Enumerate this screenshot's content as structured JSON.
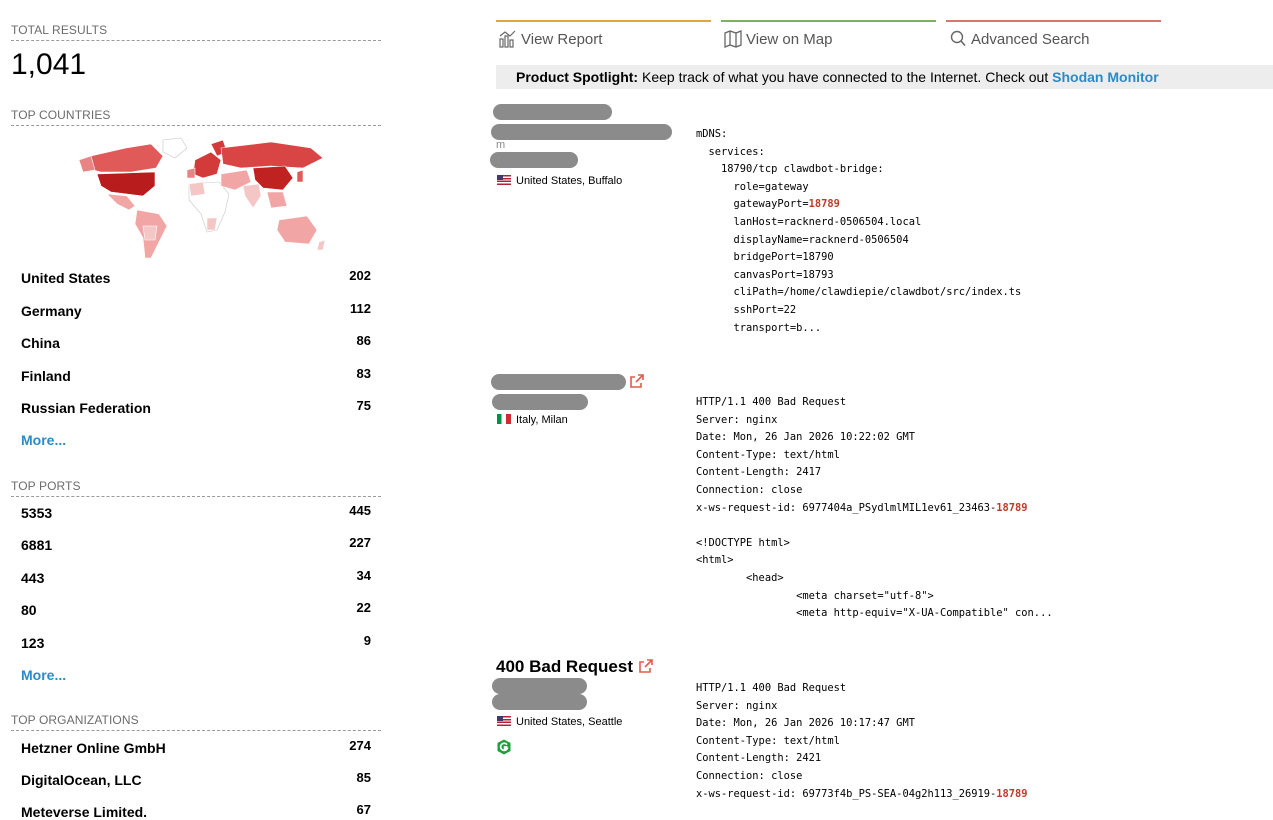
{
  "summary": {
    "total_results_label": "TOTAL RESULTS",
    "total_results": "1,041"
  },
  "top_countries": {
    "title": "TOP COUNTRIES",
    "items": [
      {
        "name": "United States",
        "count": "202"
      },
      {
        "name": "Germany",
        "count": "112"
      },
      {
        "name": "China",
        "count": "86"
      },
      {
        "name": "Finland",
        "count": "83"
      },
      {
        "name": "Russian Federation",
        "count": "75"
      }
    ],
    "more_label": "More..."
  },
  "top_ports": {
    "title": "TOP PORTS",
    "items": [
      {
        "name": "5353",
        "count": "445"
      },
      {
        "name": "6881",
        "count": "227"
      },
      {
        "name": "443",
        "count": "34"
      },
      {
        "name": "80",
        "count": "22"
      },
      {
        "name": "123",
        "count": "9"
      }
    ],
    "more_label": "More..."
  },
  "top_organizations": {
    "title": "TOP ORGANIZATIONS",
    "items": [
      {
        "name": "Hetzner Online GmbH",
        "count": "274"
      },
      {
        "name": "DigitalOcean, LLC",
        "count": "85"
      },
      {
        "name": "Meteverse Limited.",
        "count": "67"
      }
    ]
  },
  "nav": {
    "view_report": "View Report",
    "view_on_map": "View on Map",
    "advanced_search": "Advanced Search"
  },
  "spotlight": {
    "label": "Product Spotlight:",
    "text": " Keep track of what you have connected to the Internet. Check out ",
    "link": "Shodan Monitor"
  },
  "results": [
    {
      "small_text": "m",
      "location": "United States, Buffalo",
      "banner_lines": [
        "mDNS:",
        "  services:",
        "    18790/tcp clawdbot-bridge:",
        "      role=gateway",
        "      gatewayPort="
      ],
      "highlight": "18789",
      "banner_rest": "      lanHost=racknerd-0506504.local\n      displayName=racknerd-0506504\n      bridgePort=18790\n      canvasPort=18793\n      cliPath=/home/clawdiepie/clawdbot/src/index.ts\n      sshPort=22\n      transport=b..."
    },
    {
      "location": "Italy, Milan",
      "banner_head": "HTTP/1.1 400 Bad Request\nServer: nginx\nDate: Mon, 26 Jan 2026 10:22:02 GMT\nContent-Type: text/html\nContent-Length: 2417\nConnection: close\nx-ws-request-id: 6977404a_PSydlmlMIL1ev61_23463-",
      "highlight": "18789",
      "banner_rest": "\n\n<!DOCTYPE html>\n<html>\n        <head>\n                <meta charset=\"utf-8\">\n                <meta http-equiv=\"X-UA-Compatible\" con..."
    },
    {
      "title": "400 Bad Request",
      "location": "United States, Seattle",
      "banner_head": "HTTP/1.1 400 Bad Request\nServer: nginx\nDate: Mon, 26 Jan 2026 10:17:47 GMT\nContent-Type: text/html\nContent-Length: 2421\nConnection: close\nx-ws-request-id: 69773f4b_PS-SEA-04g2h113_26919-",
      "highlight": "18789"
    }
  ],
  "colors": {
    "link": "#2b8bc6",
    "highlight": "#c0392b",
    "nav_report": "#e0a63a",
    "nav_map": "#79b45a",
    "nav_search": "#d9786a"
  }
}
